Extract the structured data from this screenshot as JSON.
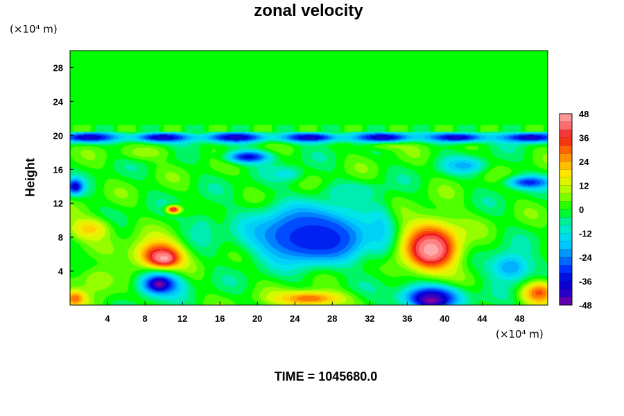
{
  "chart_data": {
    "type": "heatmap",
    "title": "zonal velocity",
    "ylabel": "Height",
    "xlabel": "",
    "x_unit": "(×10⁴ m)",
    "y_unit": "(×10⁴ m)",
    "xlim": [
      0,
      51
    ],
    "ylim": [
      0,
      30
    ],
    "x_ticks": [
      4,
      8,
      12,
      16,
      20,
      24,
      28,
      32,
      36,
      40,
      44,
      48
    ],
    "y_ticks": [
      4,
      8,
      12,
      16,
      20,
      24,
      28
    ],
    "colorbar": {
      "range": [
        -48,
        48
      ],
      "labels": [
        48,
        36,
        24,
        12,
        0,
        -12,
        -24,
        -36,
        -48
      ]
    },
    "background_value": 0,
    "layer_top": 20.5,
    "features": [
      {
        "kind": "blob",
        "x": 26,
        "y": 8,
        "rx": 5,
        "ry": 2.5,
        "value": -44
      },
      {
        "kind": "blob",
        "x": 25.5,
        "y": 8.5,
        "rx": 6.5,
        "ry": 3.5,
        "value": -30
      },
      {
        "kind": "blob",
        "x": 38.5,
        "y": 7,
        "rx": 3.5,
        "ry": 3.5,
        "value": 38
      },
      {
        "kind": "blob",
        "x": 38.5,
        "y": 6.5,
        "rx": 2,
        "ry": 1.8,
        "value": 48
      },
      {
        "kind": "blob",
        "x": 9.5,
        "y": 6,
        "rx": 3,
        "ry": 2,
        "value": 36
      },
      {
        "kind": "blob",
        "x": 10,
        "y": 5.5,
        "rx": 1.5,
        "ry": 1,
        "value": 48
      },
      {
        "kind": "blob",
        "x": 9.5,
        "y": 2.5,
        "rx": 2.5,
        "ry": 1.5,
        "value": -38
      },
      {
        "kind": "blob",
        "x": 9.5,
        "y": 2.5,
        "rx": 0.8,
        "ry": 0.6,
        "value": -48
      },
      {
        "kind": "blob",
        "x": 38.5,
        "y": 1,
        "rx": 3.5,
        "ry": 1.5,
        "value": -42
      },
      {
        "kind": "blob",
        "x": 38.5,
        "y": 0.5,
        "rx": 1.5,
        "ry": 0.6,
        "value": -48
      },
      {
        "kind": "blob",
        "x": 25.5,
        "y": 0.8,
        "rx": 4,
        "ry": 1,
        "value": 30
      },
      {
        "kind": "blob",
        "x": 19,
        "y": 17.5,
        "rx": 2.5,
        "ry": 0.8,
        "value": -36
      },
      {
        "kind": "blob",
        "x": 50,
        "y": 1.5,
        "rx": 2,
        "ry": 1.5,
        "value": 32
      },
      {
        "kind": "blob",
        "x": 2,
        "y": 9,
        "rx": 2.5,
        "ry": 1.5,
        "value": 20
      },
      {
        "kind": "blob",
        "x": 47,
        "y": 4.5,
        "rx": 2.5,
        "ry": 2,
        "value": -22
      },
      {
        "kind": "blob",
        "x": 33,
        "y": 9,
        "rx": 1.5,
        "ry": 3.5,
        "value": -15
      },
      {
        "kind": "blob",
        "x": 14,
        "y": 9,
        "rx": 2,
        "ry": 2.5,
        "value": -8
      },
      {
        "kind": "blob",
        "x": 3,
        "y": 3,
        "rx": 2.5,
        "ry": 2,
        "value": 10
      },
      {
        "kind": "blob",
        "x": 30,
        "y": 13.5,
        "rx": 3,
        "ry": 1,
        "value": -10
      },
      {
        "kind": "blob",
        "x": 42,
        "y": 16.5,
        "rx": 2.5,
        "ry": 1,
        "value": -20
      },
      {
        "kind": "blob",
        "x": 8,
        "y": 18,
        "rx": 3,
        "ry": 1,
        "value": 8
      },
      {
        "kind": "blob",
        "x": 11,
        "y": 11.3,
        "rx": 0.8,
        "ry": 0.5,
        "value": 40
      },
      {
        "kind": "blob",
        "x": 23,
        "y": 15.5,
        "rx": 2,
        "ry": 1,
        "value": -12
      },
      {
        "kind": "blob",
        "x": 34,
        "y": 19,
        "rx": 3,
        "ry": 0.7,
        "value": 10
      },
      {
        "kind": "band",
        "y": 19.8,
        "thickness": 0.6,
        "value": -40
      },
      {
        "kind": "blob",
        "x": 49,
        "y": 14.5,
        "rx": 2.5,
        "ry": 0.8,
        "value": -32
      },
      {
        "kind": "blob",
        "x": 0.5,
        "y": 14,
        "rx": 1,
        "ry": 1,
        "value": -38
      },
      {
        "kind": "blob",
        "x": 0.5,
        "y": 0.8,
        "rx": 1.2,
        "ry": 1,
        "value": 30
      }
    ]
  },
  "footer": {
    "time_label": "TIME = 1045680.0"
  }
}
